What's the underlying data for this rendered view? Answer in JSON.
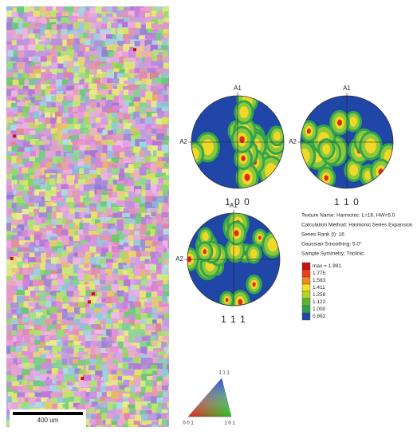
{
  "ebsd_map": {
    "scale_bar": "400 um",
    "ipf_key": {
      "top": "1 1 1",
      "left": "0 0 1",
      "right": "1 0 1"
    }
  },
  "pole_figures": [
    {
      "label": "1 0 0",
      "top_axis": "A1",
      "left_axis": "A2"
    },
    {
      "label": "1 1 0",
      "top_axis": "A1",
      "left_axis": "A2"
    },
    {
      "label": "1 1 1",
      "top_axis": "A1",
      "left_axis": "A2"
    }
  ],
  "texture_info": [
    "Texture Name: Harmonic: L=16, HW=5.0",
    "Calculation Method: Harmonic Series Expansion",
    "Series Rank (l): 16",
    "Gaussian Smoothing: 5.0°",
    "Sample Symmetry: Triclinic"
  ],
  "legend": {
    "entries": [
      "max = 1.991",
      "1.775",
      "1.583",
      "1.411",
      "1.258",
      "1.122",
      "1.000",
      "0.892"
    ]
  }
}
